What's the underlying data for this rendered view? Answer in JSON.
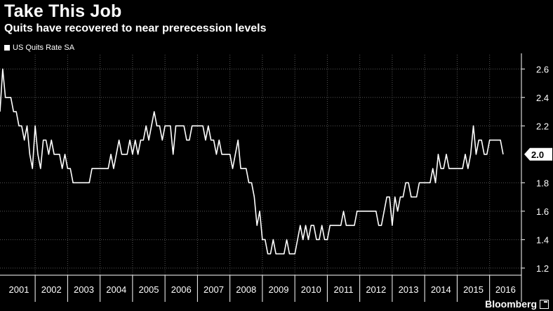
{
  "header": {
    "title": "Take This Job",
    "subtitle": "Quits have recovered to near prerecession levels"
  },
  "footer": {
    "source": "Bloomberg"
  },
  "colors": {
    "background": "#000000",
    "line": "#ffffff",
    "grid": "#555555",
    "text": "#ffffff"
  },
  "chart_data": {
    "type": "line",
    "title": "Take This Job",
    "subtitle": "Quits have recovered to near prerecession levels",
    "xlabel": "",
    "ylabel": "",
    "year_labels": [
      "2001",
      "2002",
      "2003",
      "2004",
      "2005",
      "2006",
      "2007",
      "2008",
      "2009",
      "2010",
      "2011",
      "2012",
      "2013",
      "2014",
      "2015",
      "2016"
    ],
    "ylim": [
      1.15,
      2.7
    ],
    "yticks": [
      1.2,
      1.4,
      1.6,
      1.8,
      2.2,
      2.4,
      2.6
    ],
    "grid": true,
    "legend_position": "top-left",
    "y_axis_side": "right",
    "last_value_label": "2.0",
    "series": [
      {
        "name": "US Quits Rate SA",
        "color": "#ffffff",
        "start": "2000-12",
        "frequency": "monthly",
        "values": [
          2.3,
          2.6,
          2.4,
          2.4,
          2.4,
          2.3,
          2.3,
          2.2,
          2.2,
          2.1,
          2.2,
          2.0,
          1.9,
          2.2,
          2.0,
          1.9,
          2.1,
          2.1,
          2.0,
          2.1,
          2.0,
          2.0,
          2.0,
          1.9,
          2.0,
          1.9,
          1.9,
          1.8,
          1.8,
          1.8,
          1.8,
          1.8,
          1.8,
          1.8,
          1.9,
          1.9,
          1.9,
          1.9,
          1.9,
          1.9,
          1.9,
          2.0,
          1.9,
          2.0,
          2.1,
          2.0,
          2.0,
          2.0,
          2.1,
          2.0,
          2.1,
          2.0,
          2.1,
          2.1,
          2.2,
          2.1,
          2.2,
          2.3,
          2.2,
          2.2,
          2.1,
          2.2,
          2.2,
          2.2,
          2.0,
          2.2,
          2.2,
          2.2,
          2.2,
          2.1,
          2.1,
          2.2,
          2.2,
          2.2,
          2.2,
          2.2,
          2.1,
          2.2,
          2.1,
          2.1,
          2.0,
          2.1,
          2.0,
          2.0,
          2.0,
          2.0,
          1.9,
          2.0,
          2.1,
          1.9,
          1.9,
          1.9,
          1.8,
          1.8,
          1.7,
          1.5,
          1.6,
          1.4,
          1.4,
          1.3,
          1.3,
          1.4,
          1.3,
          1.3,
          1.3,
          1.3,
          1.4,
          1.3,
          1.3,
          1.3,
          1.4,
          1.5,
          1.4,
          1.5,
          1.4,
          1.5,
          1.5,
          1.4,
          1.4,
          1.5,
          1.4,
          1.4,
          1.5,
          1.5,
          1.5,
          1.5,
          1.5,
          1.6,
          1.5,
          1.5,
          1.5,
          1.5,
          1.6,
          1.6,
          1.6,
          1.6,
          1.6,
          1.6,
          1.6,
          1.6,
          1.5,
          1.5,
          1.6,
          1.7,
          1.7,
          1.5,
          1.7,
          1.6,
          1.7,
          1.7,
          1.8,
          1.8,
          1.7,
          1.7,
          1.7,
          1.8,
          1.8,
          1.8,
          1.8,
          1.8,
          1.9,
          1.8,
          2.0,
          1.9,
          1.9,
          2.0,
          1.9,
          1.9,
          1.9,
          1.9,
          1.9,
          1.9,
          2.0,
          1.9,
          2.0,
          2.2,
          2.0,
          2.1,
          2.1,
          2.0,
          2.0,
          2.1,
          2.1,
          2.1,
          2.1,
          2.1,
          2.0
        ]
      }
    ]
  }
}
